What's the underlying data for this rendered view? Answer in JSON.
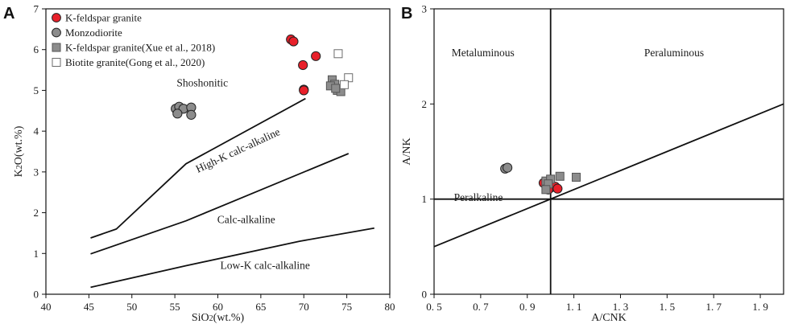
{
  "chart_data": [
    {
      "id": "A",
      "panel_label": "A",
      "type": "scatter",
      "xlabel": "SiO2(wt.%)",
      "ylabel": "K2O(wt.%)",
      "xlim": [
        40,
        80
      ],
      "ylim": [
        0,
        7
      ],
      "xticks": [
        40,
        45,
        50,
        55,
        60,
        65,
        70,
        75,
        80
      ],
      "yticks": [
        0,
        1,
        2,
        3,
        4,
        5,
        6,
        7
      ],
      "legend_position": "top-left",
      "boundaries": [
        {
          "name": "upper",
          "points": [
            [
              45.2,
              1.38
            ],
            [
              48.2,
              1.6
            ],
            [
              56.3,
              3.2
            ],
            [
              70.2,
              4.8
            ]
          ]
        },
        {
          "name": "middle",
          "points": [
            [
              45.2,
              0.99
            ],
            [
              56.3,
              1.8
            ],
            [
              75.2,
              3.45
            ]
          ]
        },
        {
          "name": "lower",
          "points": [
            [
              45.2,
              0.17
            ],
            [
              56.3,
              0.7
            ],
            [
              69.5,
              1.3
            ],
            [
              78.2,
              1.62
            ]
          ]
        }
      ],
      "annotations": [
        {
          "text": "Shoshonitic",
          "x": 58.2,
          "y": 5.1,
          "rotate": 0
        },
        {
          "text": "High-K calc-alkaline",
          "x": 62.5,
          "y": 3.45,
          "rotate": -25
        },
        {
          "text": "Calc-alkaline",
          "x": 63.3,
          "y": 1.75,
          "rotate": 0
        },
        {
          "text": "Low-K calc-alkaline",
          "x": 65.5,
          "y": 0.62,
          "rotate": 0
        }
      ],
      "series": [
        {
          "name": "K-feldspar granite",
          "marker": "circle",
          "color": "#e8202a",
          "edge": "#222222",
          "x": [
            68.5,
            68.8,
            69.9,
            70.0,
            71.4,
            70.0
          ],
          "y": [
            6.25,
            6.2,
            5.62,
            5.02,
            5.84,
            5.0
          ]
        },
        {
          "name": "Monzodiorite",
          "marker": "circle",
          "color": "#8c8c8c",
          "edge": "#222222",
          "x": [
            55.1,
            55.5,
            56.0,
            55.3,
            56.9,
            56.9
          ],
          "y": [
            4.55,
            4.6,
            4.55,
            4.43,
            4.58,
            4.4
          ]
        },
        {
          "name": "K-feldspar granite(Xue et al., 2018)",
          "marker": "square",
          "color": "#8c8c8c",
          "edge": "#555555",
          "x": [
            73.3,
            73.6,
            73.1,
            73.9,
            74.3,
            73.7
          ],
          "y": [
            5.26,
            5.15,
            5.11,
            5.0,
            4.97,
            5.05
          ]
        },
        {
          "name": "Biotite granite(Gong et al., 2020)",
          "marker": "square",
          "color": "#ffffff",
          "edge": "#6b6b6b",
          "x": [
            74.0,
            75.2,
            74.7
          ],
          "y": [
            5.9,
            5.31,
            5.14
          ]
        }
      ]
    },
    {
      "id": "B",
      "panel_label": "B",
      "type": "scatter",
      "xlabel": "A/CNK",
      "ylabel": "A/NK",
      "xlim": [
        0.5,
        2.0
      ],
      "ylim": [
        0,
        3
      ],
      "xticks": [
        0.5,
        0.7,
        0.9,
        1.1,
        1.3,
        1.5,
        1.7,
        1.9
      ],
      "xtick_labels": [
        "0. 5",
        "0. 7",
        "0. 9",
        "1. 1",
        "1. 3",
        "1. 5",
        "1. 7",
        "1. 9"
      ],
      "yticks": [
        0,
        1,
        2,
        3
      ],
      "boundaries": [
        {
          "name": "acnk-1",
          "points": [
            [
              1.0,
              0
            ],
            [
              1.0,
              3
            ]
          ]
        },
        {
          "name": "anK-1",
          "points": [
            [
              0.5,
              1.0
            ],
            [
              2.0,
              1.0
            ]
          ]
        },
        {
          "name": "diagonal",
          "points": [
            [
              0.5,
              0.5
            ],
            [
              2.0,
              2.0
            ]
          ]
        }
      ],
      "annotations": [
        {
          "text": "Metaluminous",
          "x": 0.71,
          "y": 2.5,
          "rotate": 0
        },
        {
          "text": "Peraluminous",
          "x": 1.53,
          "y": 2.5,
          "rotate": 0
        },
        {
          "text": "Peralkaline",
          "x": 0.69,
          "y": 0.98,
          "rotate": 0
        }
      ],
      "series": [
        {
          "name": "K-feldspar granite",
          "marker": "circle",
          "color": "#e8202a",
          "edge": "#222222",
          "x": [
            0.97,
            0.99,
            1.0,
            1.02,
            0.99,
            1.03
          ],
          "y": [
            1.17,
            1.15,
            1.12,
            1.13,
            1.1,
            1.11
          ]
        },
        {
          "name": "Monzodiorite",
          "marker": "circle",
          "color": "#8c8c8c",
          "edge": "#222222",
          "x": [
            0.805,
            0.815
          ],
          "y": [
            1.32,
            1.33
          ]
        },
        {
          "name": "K-feldspar granite(Xue et al., 2018)",
          "marker": "square",
          "color": "#8c8c8c",
          "edge": "#555555",
          "x": [
            0.98,
            1.0,
            1.04,
            1.11,
            0.99,
            0.98
          ],
          "y": [
            1.19,
            1.21,
            1.24,
            1.23,
            1.16,
            1.1
          ]
        }
      ]
    }
  ]
}
